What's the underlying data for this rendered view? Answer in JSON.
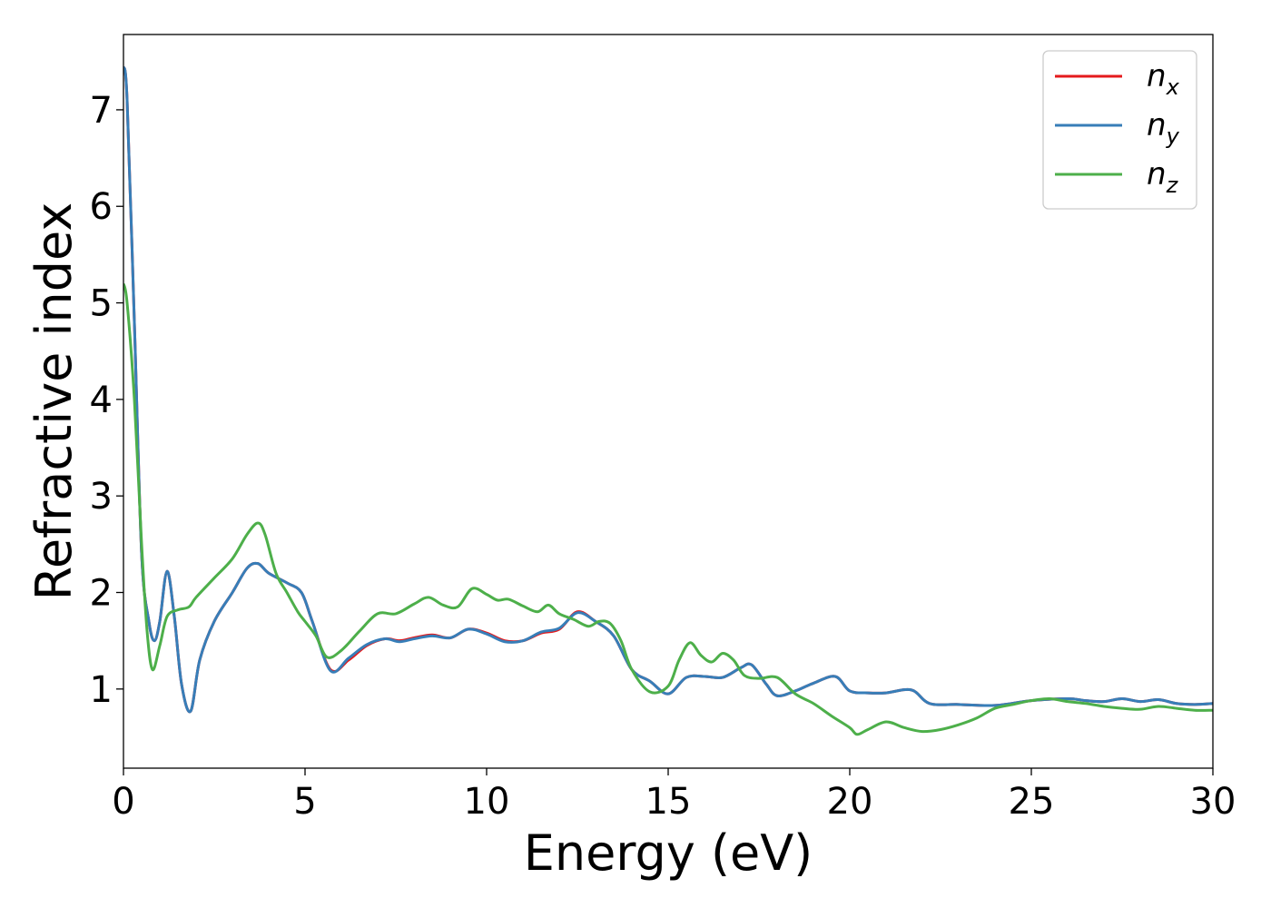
{
  "chart_data": {
    "type": "line",
    "xlabel": "Energy (eV)",
    "ylabel": "Refractive index",
    "xlim": [
      0,
      30
    ],
    "ylim": [
      0.18,
      7.78
    ],
    "xticks": [
      0,
      5,
      10,
      15,
      20,
      25,
      30
    ],
    "xtick_labels": [
      "0",
      "5",
      "10",
      "15",
      "20",
      "25",
      "30"
    ],
    "yticks": [
      1,
      2,
      3,
      4,
      5,
      6,
      7
    ],
    "ytick_labels": [
      "1",
      "2",
      "3",
      "4",
      "5",
      "6",
      "7"
    ],
    "grid": false,
    "legend_position": "top-right",
    "series": [
      {
        "name": "n",
        "subscript": "x",
        "color": "#e41a1c",
        "x": [
          0,
          0.1,
          0.3,
          0.5,
          0.7,
          0.85,
          1.0,
          1.2,
          1.4,
          1.6,
          1.85,
          2.1,
          2.5,
          3.0,
          3.4,
          3.7,
          4.0,
          4.5,
          4.9,
          5.2,
          5.7,
          6.2,
          6.7,
          7.2,
          7.6,
          8.0,
          8.5,
          9.0,
          9.5,
          10.0,
          10.5,
          11.0,
          11.5,
          12.0,
          12.5,
          13.0,
          13.5,
          14.0,
          14.5,
          15.0,
          15.5,
          16.0,
          16.5,
          17.0,
          17.3,
          17.7,
          18.0,
          18.5,
          19.0,
          19.6,
          20.0,
          20.5,
          21.0,
          21.7,
          22.2,
          23.0,
          24.0,
          25.0,
          26.0,
          26.5,
          27.0,
          27.5,
          28.0,
          28.5,
          29.0,
          29.5,
          30.0
        ],
        "y": [
          7.45,
          7.1,
          4.8,
          2.4,
          1.7,
          1.5,
          1.7,
          2.22,
          1.75,
          1.05,
          0.77,
          1.3,
          1.7,
          2.0,
          2.25,
          2.3,
          2.2,
          2.1,
          2.0,
          1.7,
          1.2,
          1.3,
          1.45,
          1.52,
          1.5,
          1.53,
          1.56,
          1.53,
          1.62,
          1.58,
          1.5,
          1.5,
          1.58,
          1.62,
          1.8,
          1.7,
          1.55,
          1.2,
          1.08,
          0.95,
          1.12,
          1.13,
          1.12,
          1.22,
          1.25,
          1.05,
          0.93,
          0.98,
          1.06,
          1.13,
          0.98,
          0.96,
          0.96,
          0.99,
          0.85,
          0.84,
          0.83,
          0.88,
          0.9,
          0.88,
          0.87,
          0.9,
          0.87,
          0.89,
          0.85,
          0.84,
          0.85
        ]
      },
      {
        "name": "n",
        "subscript": "y",
        "color": "#377eb8",
        "x": [
          0,
          0.1,
          0.3,
          0.5,
          0.7,
          0.85,
          1.0,
          1.2,
          1.4,
          1.6,
          1.85,
          2.1,
          2.5,
          3.0,
          3.4,
          3.7,
          4.0,
          4.5,
          4.9,
          5.2,
          5.7,
          6.2,
          6.7,
          7.2,
          7.6,
          8.0,
          8.5,
          9.0,
          9.5,
          10.0,
          10.5,
          11.0,
          11.5,
          12.0,
          12.5,
          13.0,
          13.5,
          14.0,
          14.5,
          15.0,
          15.5,
          16.0,
          16.5,
          17.0,
          17.3,
          17.7,
          18.0,
          18.5,
          19.0,
          19.6,
          20.0,
          20.5,
          21.0,
          21.7,
          22.2,
          23.0,
          24.0,
          25.0,
          26.0,
          26.5,
          27.0,
          27.5,
          28.0,
          28.5,
          29.0,
          29.5,
          30.0
        ],
        "y": [
          7.45,
          7.1,
          4.8,
          2.4,
          1.7,
          1.5,
          1.7,
          2.22,
          1.75,
          1.05,
          0.77,
          1.3,
          1.7,
          2.0,
          2.25,
          2.3,
          2.2,
          2.1,
          2.0,
          1.7,
          1.19,
          1.32,
          1.46,
          1.52,
          1.49,
          1.52,
          1.55,
          1.53,
          1.62,
          1.57,
          1.49,
          1.5,
          1.59,
          1.63,
          1.79,
          1.7,
          1.55,
          1.2,
          1.08,
          0.95,
          1.12,
          1.13,
          1.12,
          1.22,
          1.25,
          1.05,
          0.93,
          0.98,
          1.06,
          1.13,
          0.98,
          0.96,
          0.96,
          0.99,
          0.85,
          0.84,
          0.83,
          0.88,
          0.9,
          0.88,
          0.87,
          0.9,
          0.87,
          0.89,
          0.85,
          0.84,
          0.85
        ]
      },
      {
        "name": "n",
        "subscript": "z",
        "color": "#4daf4a",
        "x": [
          0,
          0.1,
          0.3,
          0.5,
          0.65,
          0.8,
          1.0,
          1.2,
          1.5,
          1.8,
          2.0,
          2.5,
          3.0,
          3.4,
          3.7,
          3.9,
          4.2,
          4.5,
          4.8,
          5.0,
          5.3,
          5.6,
          6.0,
          6.5,
          7.0,
          7.5,
          8.0,
          8.4,
          8.8,
          9.2,
          9.6,
          10.0,
          10.3,
          10.6,
          11.0,
          11.4,
          11.7,
          12.0,
          12.4,
          12.8,
          13.1,
          13.4,
          13.7,
          14.0,
          14.5,
          15.0,
          15.3,
          15.6,
          15.9,
          16.2,
          16.5,
          16.8,
          17.1,
          17.5,
          18.0,
          18.5,
          19.0,
          19.5,
          20.0,
          20.2,
          20.5,
          21.0,
          21.5,
          22.0,
          22.5,
          23.0,
          23.5,
          24.0,
          24.5,
          25.0,
          25.5,
          26.0,
          26.5,
          27.0,
          27.5,
          28.0,
          28.5,
          29.0,
          29.5,
          30.0
        ],
        "y": [
          5.2,
          5.0,
          4.0,
          2.5,
          1.6,
          1.2,
          1.45,
          1.75,
          1.82,
          1.85,
          1.95,
          2.15,
          2.35,
          2.6,
          2.72,
          2.6,
          2.2,
          2.0,
          1.8,
          1.7,
          1.55,
          1.33,
          1.4,
          1.6,
          1.78,
          1.78,
          1.88,
          1.95,
          1.87,
          1.85,
          2.04,
          1.98,
          1.92,
          1.93,
          1.86,
          1.8,
          1.87,
          1.78,
          1.72,
          1.65,
          1.7,
          1.68,
          1.5,
          1.2,
          0.97,
          1.03,
          1.3,
          1.48,
          1.35,
          1.28,
          1.37,
          1.3,
          1.14,
          1.11,
          1.12,
          0.95,
          0.85,
          0.72,
          0.6,
          0.53,
          0.58,
          0.66,
          0.6,
          0.56,
          0.58,
          0.63,
          0.7,
          0.8,
          0.84,
          0.88,
          0.9,
          0.87,
          0.85,
          0.82,
          0.8,
          0.79,
          0.82,
          0.8,
          0.78,
          0.78
        ]
      }
    ]
  }
}
